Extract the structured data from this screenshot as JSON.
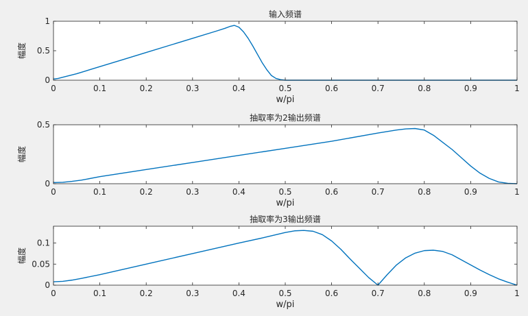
{
  "figure": {
    "background": "#f0f0f0",
    "axes_background": "#ffffff",
    "line_color": "#0072bd"
  },
  "chart_data": [
    {
      "type": "line",
      "title": "输入频谱",
      "xlabel": "w/pi",
      "ylabel": "幅度",
      "xlim": [
        0,
        1
      ],
      "ylim": [
        0,
        1
      ],
      "xticks": [
        0,
        0.1,
        0.2,
        0.3,
        0.4,
        0.5,
        0.6,
        0.7,
        0.8,
        0.9,
        1
      ],
      "xtick_labels": [
        "0",
        "0.1",
        "0.2",
        "0.3",
        "0.4",
        "0.5",
        "0.6",
        "0.7",
        "0.8",
        "0.9",
        "1"
      ],
      "yticks": [
        0,
        0.5,
        1
      ],
      "ytick_labels": [
        "0",
        "0.5",
        "1"
      ],
      "grid": false,
      "series": [
        {
          "x": [
            0,
            0.01,
            0.02,
            0.05,
            0.1,
            0.15,
            0.2,
            0.25,
            0.3,
            0.35,
            0.37,
            0.38,
            0.39,
            0.4,
            0.41,
            0.42,
            0.43,
            0.44,
            0.45,
            0.46,
            0.47,
            0.48,
            0.49,
            0.5,
            0.6,
            0.7,
            0.8,
            0.9,
            1
          ],
          "y": [
            0.02,
            0.03,
            0.05,
            0.11,
            0.23,
            0.35,
            0.47,
            0.59,
            0.71,
            0.83,
            0.88,
            0.91,
            0.93,
            0.9,
            0.82,
            0.71,
            0.58,
            0.44,
            0.3,
            0.18,
            0.08,
            0.03,
            0.01,
            0,
            0,
            0,
            0,
            0,
            0
          ]
        }
      ]
    },
    {
      "type": "line",
      "title": "抽取率为2输出频谱",
      "xlabel": "w/pi",
      "ylabel": "幅度",
      "xlim": [
        0,
        1
      ],
      "ylim": [
        0,
        0.5
      ],
      "xticks": [
        0,
        0.1,
        0.2,
        0.3,
        0.4,
        0.5,
        0.6,
        0.7,
        0.8,
        0.9,
        1
      ],
      "xtick_labels": [
        "0",
        "0.1",
        "0.2",
        "0.3",
        "0.4",
        "0.5",
        "0.6",
        "0.7",
        "0.8",
        "0.9",
        "1"
      ],
      "yticks": [
        0,
        0.5
      ],
      "ytick_labels": [
        "0",
        "0.5"
      ],
      "grid": false,
      "series": [
        {
          "x": [
            0,
            0.02,
            0.04,
            0.06,
            0.1,
            0.2,
            0.3,
            0.4,
            0.5,
            0.6,
            0.7,
            0.74,
            0.76,
            0.78,
            0.8,
            0.82,
            0.84,
            0.86,
            0.88,
            0.9,
            0.92,
            0.94,
            0.96,
            0.98,
            1
          ],
          "y": [
            0.01,
            0.012,
            0.02,
            0.03,
            0.06,
            0.12,
            0.18,
            0.24,
            0.3,
            0.36,
            0.43,
            0.455,
            0.465,
            0.468,
            0.455,
            0.41,
            0.35,
            0.29,
            0.22,
            0.15,
            0.09,
            0.045,
            0.015,
            0.003,
            0
          ]
        }
      ]
    },
    {
      "type": "line",
      "title": "抽取率为3输出频谱",
      "xlabel": "w/pi",
      "ylabel": "幅度",
      "xlim": [
        0,
        1
      ],
      "ylim": [
        0,
        0.14
      ],
      "xticks": [
        0,
        0.1,
        0.2,
        0.3,
        0.4,
        0.5,
        0.6,
        0.7,
        0.8,
        0.9,
        1
      ],
      "xtick_labels": [
        "0",
        "0.1",
        "0.2",
        "0.3",
        "0.4",
        "0.5",
        "0.6",
        "0.7",
        "0.8",
        "0.9",
        "1"
      ],
      "yticks": [
        0,
        0.05,
        0.1
      ],
      "ytick_labels": [
        "0",
        "0.05",
        "0.1"
      ],
      "grid": false,
      "series": [
        {
          "x": [
            0,
            0.02,
            0.04,
            0.06,
            0.1,
            0.2,
            0.3,
            0.4,
            0.45,
            0.5,
            0.52,
            0.54,
            0.56,
            0.58,
            0.6,
            0.62,
            0.64,
            0.66,
            0.68,
            0.7,
            0.72,
            0.74,
            0.76,
            0.78,
            0.8,
            0.82,
            0.84,
            0.86,
            0.88,
            0.9,
            0.92,
            0.94,
            0.96,
            0.98,
            1
          ],
          "y": [
            0.008,
            0.009,
            0.012,
            0.016,
            0.025,
            0.05,
            0.075,
            0.1,
            0.112,
            0.125,
            0.129,
            0.13,
            0.128,
            0.12,
            0.105,
            0.085,
            0.062,
            0.04,
            0.018,
            0,
            0.025,
            0.048,
            0.065,
            0.076,
            0.082,
            0.083,
            0.08,
            0.072,
            0.06,
            0.048,
            0.036,
            0.025,
            0.015,
            0.007,
            0
          ]
        }
      ]
    }
  ]
}
